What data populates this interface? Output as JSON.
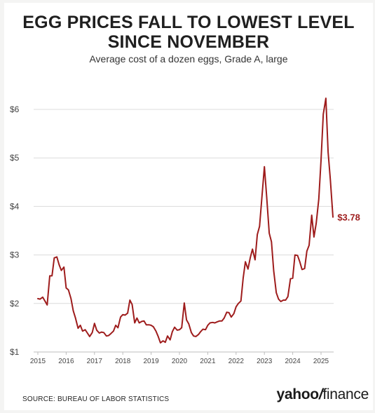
{
  "header": {
    "title_line1": "EGG PRICES FALL TO LOWEST LEVEL",
    "title_line2": "SINCE NOVEMBER",
    "subtitle": "Average cost of a dozen eggs, Grade A, large"
  },
  "footer": {
    "source": "SOURCE: BUREAU OF LABOR STATISTICS",
    "logo_left": "yahoo",
    "logo_slash": "/",
    "logo_right": "finance"
  },
  "colors": {
    "line": "#9e1c1c",
    "grid": "#dcdcdc",
    "text": "#444444"
  },
  "chart_data": {
    "type": "line",
    "title": "EGG PRICES FALL TO LOWEST LEVEL SINCE NOVEMBER",
    "subtitle": "Average cost of a dozen eggs, Grade A, large",
    "xlabel": "",
    "ylabel": "",
    "xlim": [
      2015.0,
      2025.42
    ],
    "ylim": [
      1,
      6.5
    ],
    "grid": "horizontal",
    "x_ticks": [
      2015,
      2016,
      2017,
      2018,
      2019,
      2020,
      2021,
      2022,
      2023,
      2024,
      2025
    ],
    "y_ticks": [
      {
        "value": 1,
        "label": "$1"
      },
      {
        "value": 2,
        "label": "$2"
      },
      {
        "value": 3,
        "label": "$3"
      },
      {
        "value": 4,
        "label": "$4"
      },
      {
        "value": 5,
        "label": "$5"
      },
      {
        "value": 6,
        "label": "$6"
      }
    ],
    "annotation": {
      "x": 2025.33,
      "y": 3.78,
      "label": "$3.78"
    },
    "series": [
      {
        "values": [
          [
            2015.0,
            2.1
          ],
          [
            2015.08,
            2.09
          ],
          [
            2015.17,
            2.13
          ],
          [
            2015.25,
            2.05
          ],
          [
            2015.33,
            1.97
          ],
          [
            2015.42,
            2.57
          ],
          [
            2015.5,
            2.57
          ],
          [
            2015.58,
            2.94
          ],
          [
            2015.67,
            2.96
          ],
          [
            2015.75,
            2.8
          ],
          [
            2015.83,
            2.68
          ],
          [
            2015.92,
            2.75
          ],
          [
            2016.0,
            2.32
          ],
          [
            2016.08,
            2.28
          ],
          [
            2016.17,
            2.1
          ],
          [
            2016.25,
            1.85
          ],
          [
            2016.33,
            1.7
          ],
          [
            2016.42,
            1.49
          ],
          [
            2016.5,
            1.55
          ],
          [
            2016.58,
            1.43
          ],
          [
            2016.67,
            1.46
          ],
          [
            2016.75,
            1.39
          ],
          [
            2016.83,
            1.32
          ],
          [
            2016.92,
            1.4
          ],
          [
            2017.0,
            1.59
          ],
          [
            2017.08,
            1.45
          ],
          [
            2017.17,
            1.39
          ],
          [
            2017.25,
            1.41
          ],
          [
            2017.33,
            1.4
          ],
          [
            2017.42,
            1.33
          ],
          [
            2017.5,
            1.34
          ],
          [
            2017.58,
            1.38
          ],
          [
            2017.67,
            1.43
          ],
          [
            2017.75,
            1.55
          ],
          [
            2017.83,
            1.5
          ],
          [
            2017.92,
            1.72
          ],
          [
            2018.0,
            1.77
          ],
          [
            2018.08,
            1.76
          ],
          [
            2018.17,
            1.8
          ],
          [
            2018.25,
            2.07
          ],
          [
            2018.33,
            1.98
          ],
          [
            2018.42,
            1.6
          ],
          [
            2018.5,
            1.7
          ],
          [
            2018.58,
            1.6
          ],
          [
            2018.67,
            1.63
          ],
          [
            2018.75,
            1.64
          ],
          [
            2018.83,
            1.56
          ],
          [
            2018.92,
            1.56
          ],
          [
            2019.0,
            1.55
          ],
          [
            2019.08,
            1.52
          ],
          [
            2019.17,
            1.43
          ],
          [
            2019.25,
            1.32
          ],
          [
            2019.33,
            1.19
          ],
          [
            2019.42,
            1.23
          ],
          [
            2019.5,
            1.2
          ],
          [
            2019.58,
            1.33
          ],
          [
            2019.67,
            1.25
          ],
          [
            2019.75,
            1.42
          ],
          [
            2019.83,
            1.51
          ],
          [
            2019.92,
            1.45
          ],
          [
            2020.0,
            1.46
          ],
          [
            2020.08,
            1.5
          ],
          [
            2020.17,
            2.01
          ],
          [
            2020.25,
            1.66
          ],
          [
            2020.33,
            1.58
          ],
          [
            2020.42,
            1.4
          ],
          [
            2020.5,
            1.33
          ],
          [
            2020.58,
            1.32
          ],
          [
            2020.67,
            1.36
          ],
          [
            2020.75,
            1.42
          ],
          [
            2020.83,
            1.47
          ],
          [
            2020.92,
            1.46
          ],
          [
            2021.0,
            1.55
          ],
          [
            2021.08,
            1.6
          ],
          [
            2021.17,
            1.61
          ],
          [
            2021.25,
            1.6
          ],
          [
            2021.33,
            1.62
          ],
          [
            2021.42,
            1.64
          ],
          [
            2021.5,
            1.64
          ],
          [
            2021.58,
            1.7
          ],
          [
            2021.67,
            1.82
          ],
          [
            2021.75,
            1.81
          ],
          [
            2021.83,
            1.72
          ],
          [
            2021.92,
            1.79
          ],
          [
            2022.0,
            1.93
          ],
          [
            2022.08,
            2.0
          ],
          [
            2022.17,
            2.05
          ],
          [
            2022.25,
            2.52
          ],
          [
            2022.33,
            2.86
          ],
          [
            2022.42,
            2.71
          ],
          [
            2022.5,
            2.94
          ],
          [
            2022.58,
            3.12
          ],
          [
            2022.67,
            2.9
          ],
          [
            2022.75,
            3.42
          ],
          [
            2022.83,
            3.59
          ],
          [
            2022.92,
            4.25
          ],
          [
            2023.0,
            4.82
          ],
          [
            2023.08,
            4.21
          ],
          [
            2023.17,
            3.45
          ],
          [
            2023.25,
            3.27
          ],
          [
            2023.33,
            2.67
          ],
          [
            2023.42,
            2.22
          ],
          [
            2023.5,
            2.09
          ],
          [
            2023.58,
            2.04
          ],
          [
            2023.67,
            2.07
          ],
          [
            2023.75,
            2.07
          ],
          [
            2023.83,
            2.14
          ],
          [
            2023.92,
            2.51
          ],
          [
            2024.0,
            2.52
          ],
          [
            2024.08,
            3.0
          ],
          [
            2024.17,
            2.99
          ],
          [
            2024.25,
            2.86
          ],
          [
            2024.33,
            2.7
          ],
          [
            2024.42,
            2.72
          ],
          [
            2024.5,
            3.08
          ],
          [
            2024.58,
            3.2
          ],
          [
            2024.67,
            3.82
          ],
          [
            2024.75,
            3.37
          ],
          [
            2024.83,
            3.65
          ],
          [
            2024.92,
            4.15
          ],
          [
            2025.0,
            4.95
          ],
          [
            2025.08,
            5.9
          ],
          [
            2025.17,
            6.23
          ],
          [
            2025.25,
            5.12
          ],
          [
            2025.33,
            4.55
          ],
          [
            2025.42,
            3.78
          ]
        ]
      }
    ]
  }
}
